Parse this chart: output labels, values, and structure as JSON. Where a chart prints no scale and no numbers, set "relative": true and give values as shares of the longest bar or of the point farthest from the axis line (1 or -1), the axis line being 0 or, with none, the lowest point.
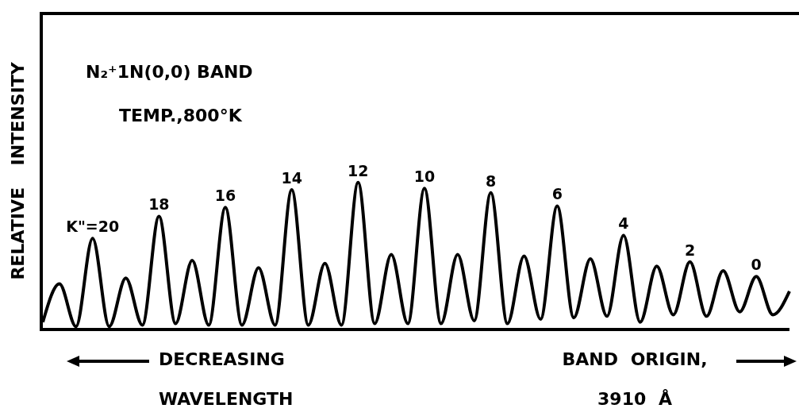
{
  "chart_data": {
    "type": "line",
    "relative": true,
    "title": "N₂⁺1N(0,0) BAND",
    "subtitle": "TEMP.,800°K",
    "ylabel": "RELATIVE INTENSITY",
    "annotations": [
      "DECREASING WAVELENGTH",
      "BAND ORIGIN, 3910 Å",
      {
        "text": "K\"=20",
        "y": 0.62
      },
      {
        "text": "18",
        "y": 0.77
      },
      {
        "text": "16",
        "y": 0.83
      },
      {
        "text": "14",
        "y": 0.95
      },
      {
        "text": "12",
        "y": 1
      },
      {
        "text": "10",
        "y": 0.96
      },
      {
        "text": "8",
        "y": 0.93
      },
      {
        "text": "6",
        "y": 0.84
      },
      {
        "text": "4",
        "y": 0.64
      },
      {
        "text": "2",
        "y": 0.46
      },
      {
        "text": "0",
        "y": 0.36
      }
    ],
    "categories": [
      null,
      null,
      null,
      null,
      null,
      null,
      null,
      null,
      null,
      null,
      null,
      null,
      null,
      null,
      null,
      null,
      null,
      null,
      null,
      null,
      null,
      null,
      null,
      null,
      null,
      null,
      null,
      null,
      null,
      null,
      null,
      null,
      null,
      null,
      null,
      null,
      null,
      null,
      null,
      null,
      null,
      null,
      null,
      null,
      null,
      null
    ],
    "values": [
      0.05,
      0.31,
      0.02,
      0.62,
      0.02,
      0.35,
      0.03,
      0.77,
      0.04,
      0.47,
      0.03,
      0.83,
      0.03,
      0.42,
      0.03,
      0.95,
      0.03,
      0.45,
      0.03,
      1,
      0.04,
      0.51,
      0.04,
      0.96,
      0.04,
      0.51,
      0.06,
      0.93,
      0.04,
      0.5,
      0.07,
      0.84,
      0.08,
      0.48,
      0.09,
      0.64,
      0.05,
      0.43,
      0.1,
      0.46,
      0.09,
      0.4,
      0.12,
      0.36,
      0.1,
      0.26
    ],
    "color": "#000000",
    "marker": "none",
    "line_style": "solid",
    "grid": false,
    "legend": false
  }
}
